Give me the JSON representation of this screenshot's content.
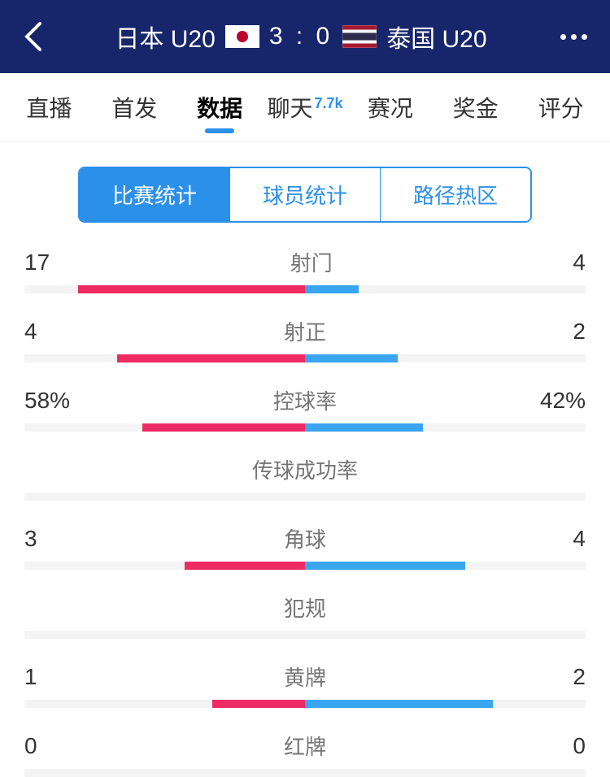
{
  "header": {
    "home_team": "日本 U20",
    "away_team": "泰国 U20",
    "score": "3 : 0"
  },
  "tabs": [
    {
      "label": "直播",
      "active": false
    },
    {
      "label": "首发",
      "active": false
    },
    {
      "label": "数据",
      "active": true
    },
    {
      "label": "聊天",
      "active": false,
      "badge": "7.7k"
    },
    {
      "label": "赛况",
      "active": false
    },
    {
      "label": "奖金",
      "active": false
    },
    {
      "label": "评分",
      "active": false
    }
  ],
  "segments": [
    {
      "label": "比赛统计",
      "active": true
    },
    {
      "label": "球员统计",
      "active": false
    },
    {
      "label": "路径热区",
      "active": false
    }
  ],
  "colors": {
    "home_bar": "#ed2b62",
    "away_bar": "#3aa5f0",
    "accent": "#2b90e9",
    "header_bg": "#17266b"
  },
  "stats": [
    {
      "label": "射门",
      "home": "17",
      "away": "4",
      "home_pct": 81,
      "away_pct": 19,
      "has_bar": true
    },
    {
      "label": "射正",
      "home": "4",
      "away": "2",
      "home_pct": 67,
      "away_pct": 33,
      "has_bar": true
    },
    {
      "label": "控球率",
      "home": "58%",
      "away": "42%",
      "home_pct": 58,
      "away_pct": 42,
      "has_bar": true
    },
    {
      "label": "传球成功率",
      "home": "",
      "away": "",
      "home_pct": 0,
      "away_pct": 0,
      "has_bar": false
    },
    {
      "label": "角球",
      "home": "3",
      "away": "4",
      "home_pct": 43,
      "away_pct": 57,
      "has_bar": true
    },
    {
      "label": "犯规",
      "home": "",
      "away": "",
      "home_pct": 0,
      "away_pct": 0,
      "has_bar": false
    },
    {
      "label": "黄牌",
      "home": "1",
      "away": "2",
      "home_pct": 33,
      "away_pct": 67,
      "has_bar": true
    },
    {
      "label": "红牌",
      "home": "0",
      "away": "0",
      "home_pct": 0,
      "away_pct": 0,
      "has_bar": true
    }
  ]
}
